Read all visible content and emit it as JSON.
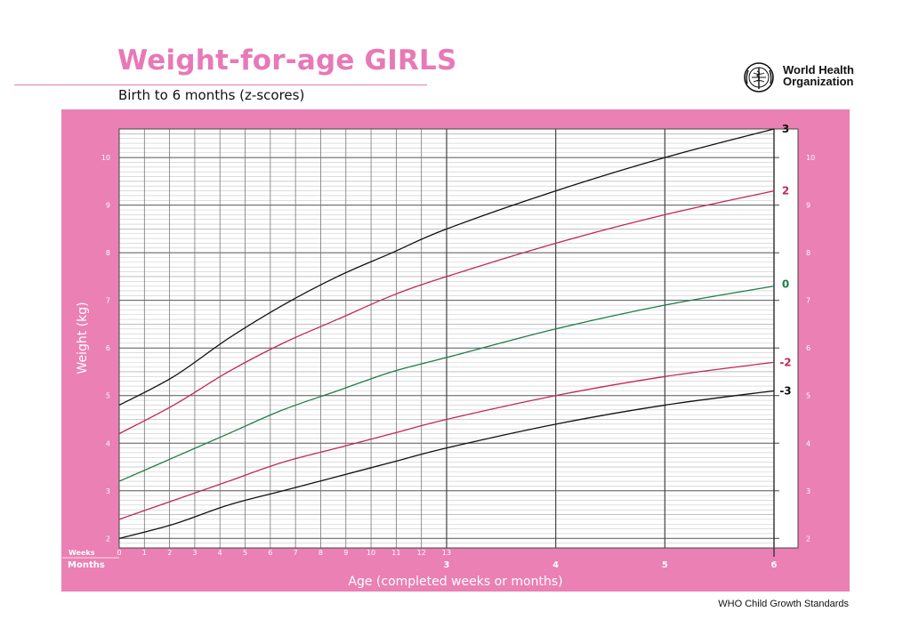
{
  "header": {
    "title": "Weight-for-age GIRLS",
    "subtitle": "Birth to 6 months (z-scores)"
  },
  "organization": {
    "line1": "World Health",
    "line2": "Organization",
    "logo_icon": "who-emblem-icon"
  },
  "footer": {
    "text": "WHO Child Growth Standards"
  },
  "colors": {
    "title": "#e879b6",
    "panel": "#ea80b4",
    "z3": "#111111",
    "z2": "#c0285a",
    "z0": "#1e7d46"
  },
  "chart_data": {
    "type": "line",
    "xlabel": "Age (completed weeks or months)",
    "ylabel": "Weight (kg)",
    "x_unit": "months",
    "xlim": [
      0,
      6
    ],
    "ylim": [
      1.8,
      10.6
    ],
    "grid": true,
    "week_row_label": "Weeks",
    "month_row_label": "Months",
    "week_ticks": [
      "0",
      "1",
      "2",
      "3",
      "4",
      "5",
      "6",
      "7",
      "8",
      "9",
      "10",
      "11",
      "12",
      "13"
    ],
    "month_ticks": [
      "3",
      "4",
      "5",
      "6"
    ],
    "y_ticks": [
      2,
      3,
      4,
      5,
      6,
      7,
      8,
      9,
      10
    ],
    "x": [
      0,
      0.5,
      1,
      1.5,
      2,
      2.5,
      3,
      4,
      5,
      6
    ],
    "series": [
      {
        "name": "3",
        "color": "#111111",
        "values": [
          4.8,
          5.4,
          6.2,
          6.9,
          7.5,
          8.0,
          8.5,
          9.3,
          10.0,
          10.6
        ]
      },
      {
        "name": "2",
        "color": "#c0285a",
        "values": [
          4.2,
          4.8,
          5.5,
          6.1,
          6.6,
          7.1,
          7.5,
          8.2,
          8.8,
          9.3
        ]
      },
      {
        "name": "0",
        "color": "#1e7d46",
        "values": [
          3.2,
          3.7,
          4.2,
          4.7,
          5.1,
          5.5,
          5.8,
          6.4,
          6.9,
          7.3
        ]
      },
      {
        "name": "-2",
        "color": "#c0285a",
        "values": [
          2.4,
          2.8,
          3.2,
          3.6,
          3.9,
          4.2,
          4.5,
          5.0,
          5.4,
          5.7
        ]
      },
      {
        "name": "-3",
        "color": "#111111",
        "values": [
          2.0,
          2.3,
          2.7,
          3.0,
          3.3,
          3.6,
          3.9,
          4.4,
          4.8,
          5.1
        ]
      }
    ]
  }
}
